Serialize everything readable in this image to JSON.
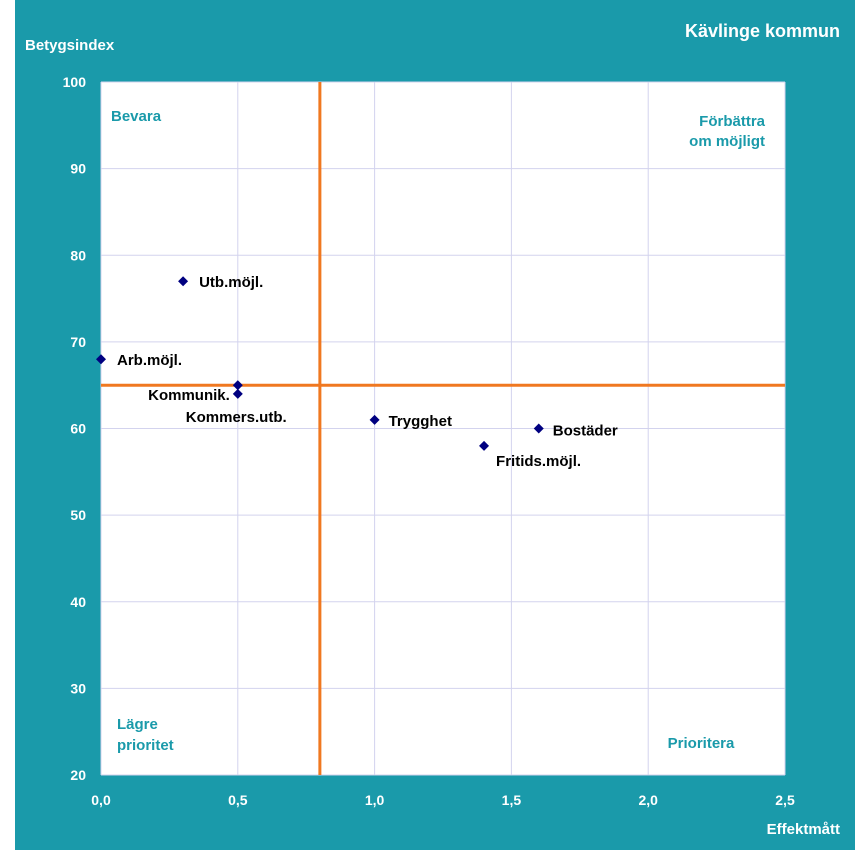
{
  "chart_data": {
    "type": "scatter",
    "title": "Kävlinge kommun",
    "xlabel": "Effektmått",
    "ylabel": "Betygsindex",
    "xlim": [
      0.0,
      2.5
    ],
    "ylim": [
      20,
      100
    ],
    "x_ticks": [
      "0,0",
      "0,5",
      "1,0",
      "1,5",
      "2,0",
      "2,5"
    ],
    "y_ticks": [
      "20",
      "30",
      "40",
      "50",
      "60",
      "70",
      "80",
      "90",
      "100"
    ],
    "grid": true,
    "reference_lines": {
      "x": 0.8,
      "y": 65
    },
    "quadrant_labels": {
      "top_left": "Bevara",
      "top_right_line1": "Förbättra",
      "top_right_line2": "om möjligt",
      "bottom_left_line1": "Lägre",
      "bottom_left_line2": "prioritet",
      "bottom_right": "Prioritera"
    },
    "points": [
      {
        "label": "Utb.möjl.",
        "x": 0.3,
        "y": 77
      },
      {
        "label": "Arb.möjl.",
        "x": 0.0,
        "y": 68
      },
      {
        "label": "Kommunik.",
        "x": 0.5,
        "y": 65
      },
      {
        "label": "Kommers.utb.",
        "x": 0.5,
        "y": 64
      },
      {
        "label": "Trygghet",
        "x": 1.0,
        "y": 61
      },
      {
        "label": "Bostäder",
        "x": 1.6,
        "y": 60
      },
      {
        "label": "Fritids.möjl.",
        "x": 1.4,
        "y": 58
      }
    ],
    "colors": {
      "frame": "#1a9aaa",
      "plot_background": "#ffffff",
      "grid": "#d3d3ee",
      "reference_line": "#f07820",
      "marker": "#000080",
      "point_label": "#000000",
      "quadrant_label": "#1a9aaa",
      "axis_text": "#ffffff"
    }
  }
}
